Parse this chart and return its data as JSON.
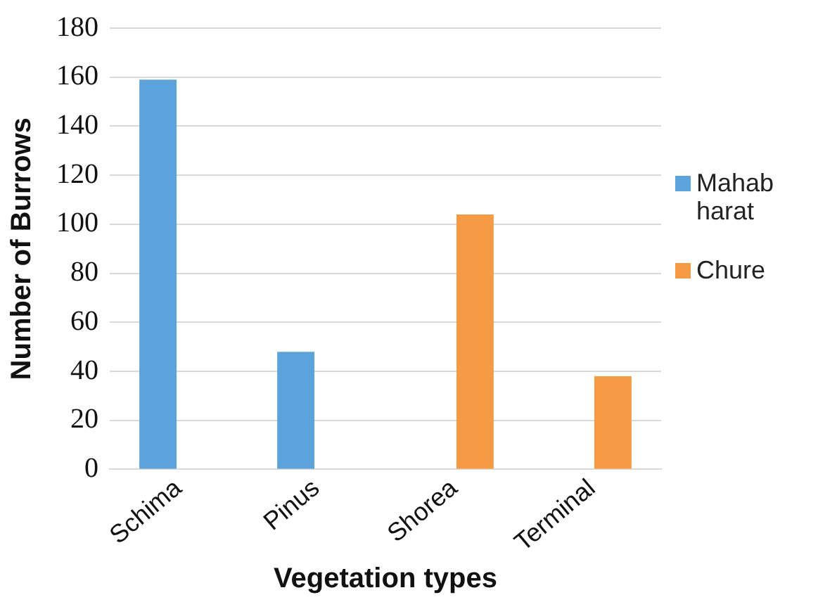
{
  "chart_data": {
    "type": "bar",
    "xlabel": "Vegetation types",
    "ylabel": "Number of Burrows",
    "categories": [
      "Schima",
      "Pinus",
      "Shorea",
      "Terminal"
    ],
    "series": [
      {
        "name": "Mahabharat",
        "color": "#5ba3da",
        "values": [
          159,
          48,
          null,
          null
        ]
      },
      {
        "name": "Chure",
        "color": "#f59a45",
        "values": [
          null,
          null,
          104,
          38
        ]
      }
    ],
    "ylim": [
      0,
      180
    ],
    "yticks": [
      0,
      20,
      40,
      60,
      80,
      100,
      120,
      140,
      160,
      180
    ],
    "grid": "y",
    "legend": "right"
  }
}
